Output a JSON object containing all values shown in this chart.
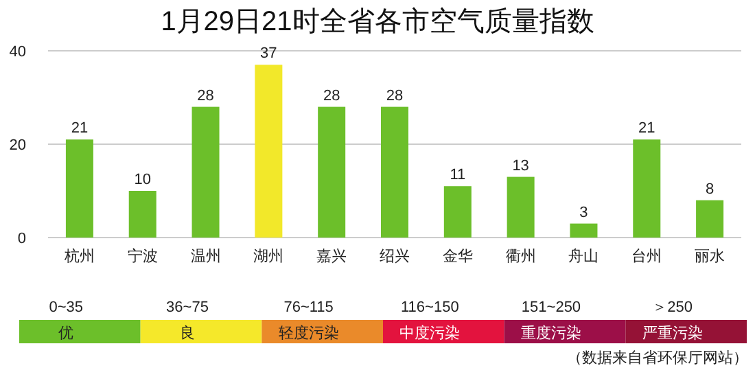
{
  "chart_data": [
    {
      "type": "bar",
      "title": "1月29日21时全省各市空气质量指数",
      "categories": [
        "杭州",
        "宁波",
        "温州",
        "湖州",
        "嘉兴",
        "绍兴",
        "金华",
        "衢州",
        "舟山",
        "台州",
        "丽水"
      ],
      "values": [
        21,
        10,
        28,
        37,
        28,
        28,
        11,
        13,
        3,
        21,
        8
      ],
      "colors": [
        "#6cbf2a",
        "#6cbf2a",
        "#6cbf2a",
        "#f2e82a",
        "#6cbf2a",
        "#6cbf2a",
        "#6cbf2a",
        "#6cbf2a",
        "#6cbf2a",
        "#6cbf2a",
        "#6cbf2a"
      ],
      "ylim": [
        0,
        40
      ],
      "yticks": [
        0,
        20,
        40
      ],
      "grid": "y",
      "data_labels": true,
      "annotations": [
        "（数据来自省环保厅网站）"
      ]
    },
    {
      "type": "other",
      "categories": [
        "优",
        "良",
        "轻度污染",
        "中度污染",
        "重度污染",
        "严重污染"
      ],
      "colors": [
        "#6cbf2a",
        "#f5e82a",
        "#ea8a2a",
        "#e3133e",
        "#9c0f48",
        "#951236"
      ],
      "annotations": [
        "0~35",
        "36~75",
        "76~115",
        "116~150",
        "151~250",
        "＞250"
      ]
    }
  ]
}
